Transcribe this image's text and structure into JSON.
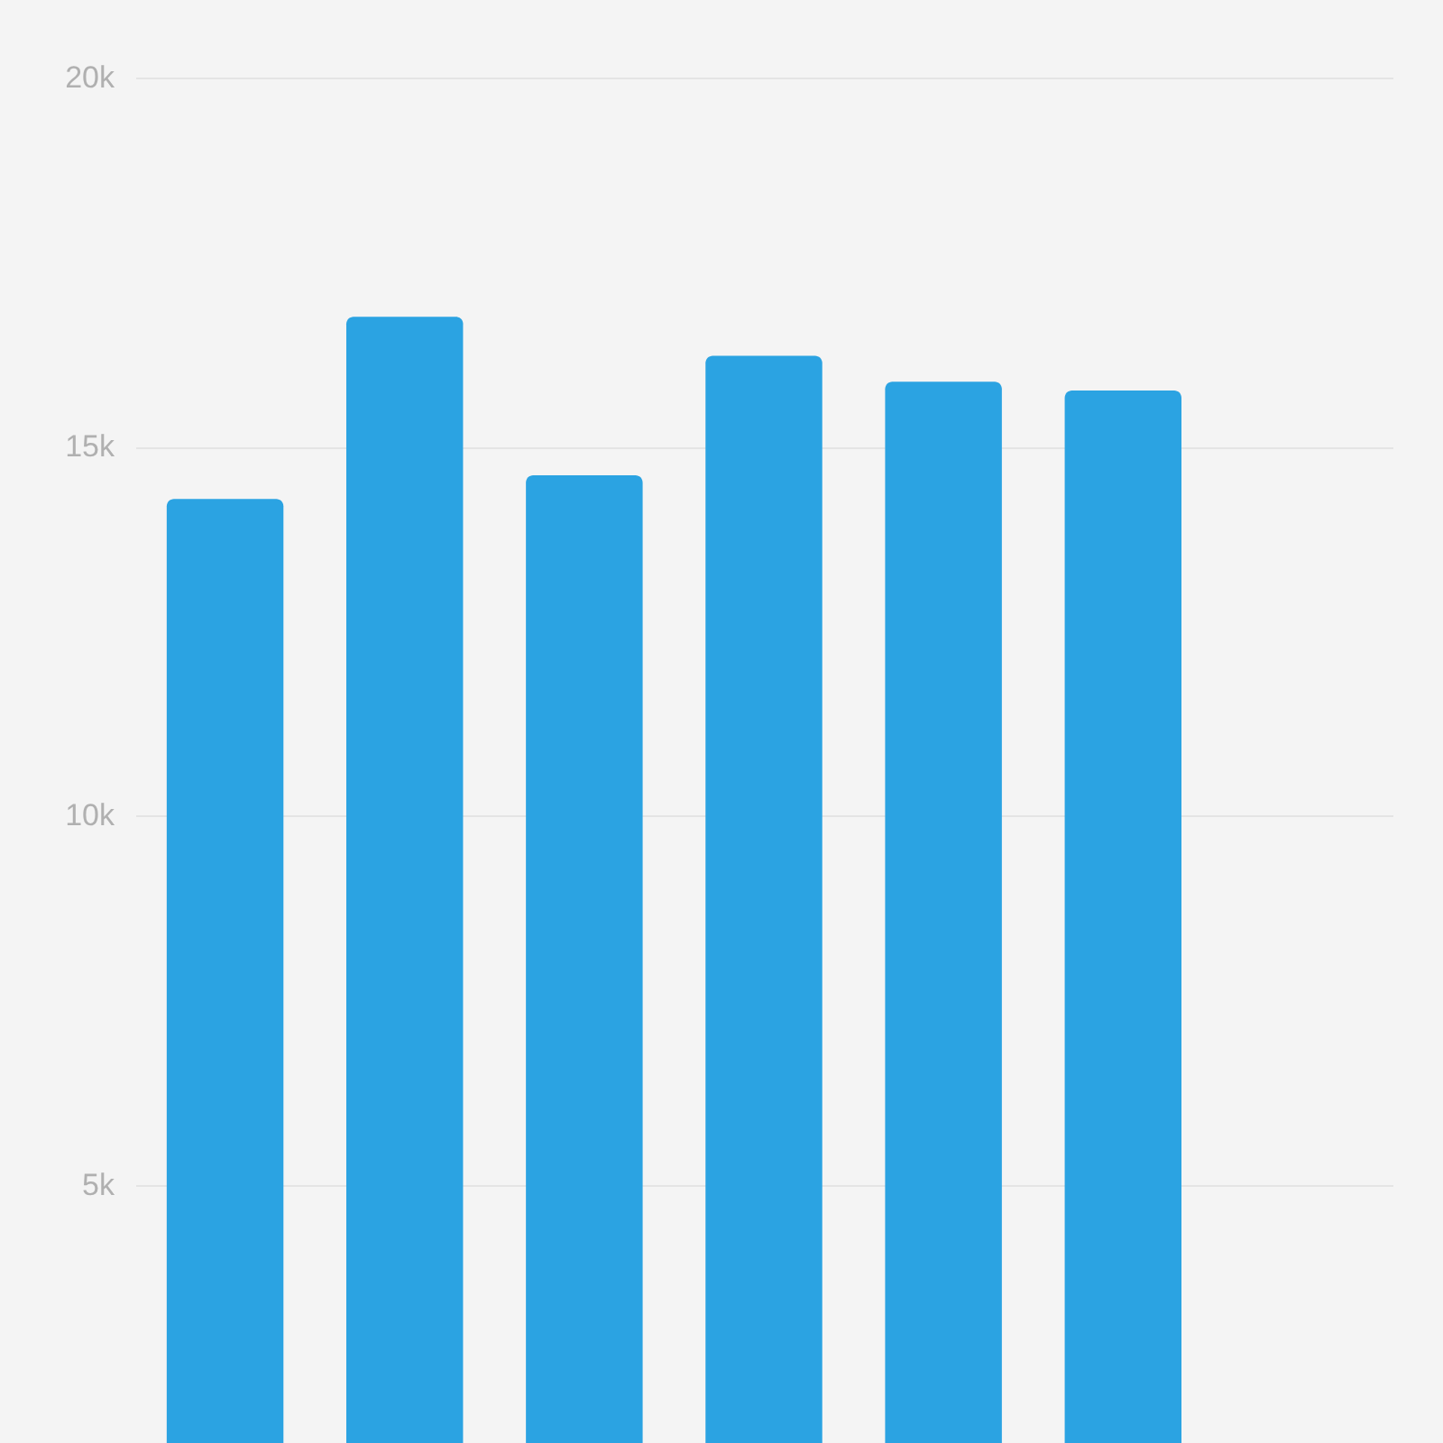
{
  "chart_data": {
    "type": "bar",
    "categories": [
      null,
      null,
      null,
      null,
      null,
      null,
      null
    ],
    "values": [
      14290,
      16760,
      14610,
      16230,
      15880,
      15760,
      null
    ],
    "color": "#2ba3e2",
    "ylim": [
      1500,
      20000
    ],
    "yticks": [
      {
        "value": 5000,
        "label": "5k"
      },
      {
        "value": 10000,
        "label": "10k"
      },
      {
        "value": 15000,
        "label": "15k"
      },
      {
        "value": 20000,
        "label": "20k"
      }
    ],
    "grid": "y"
  }
}
